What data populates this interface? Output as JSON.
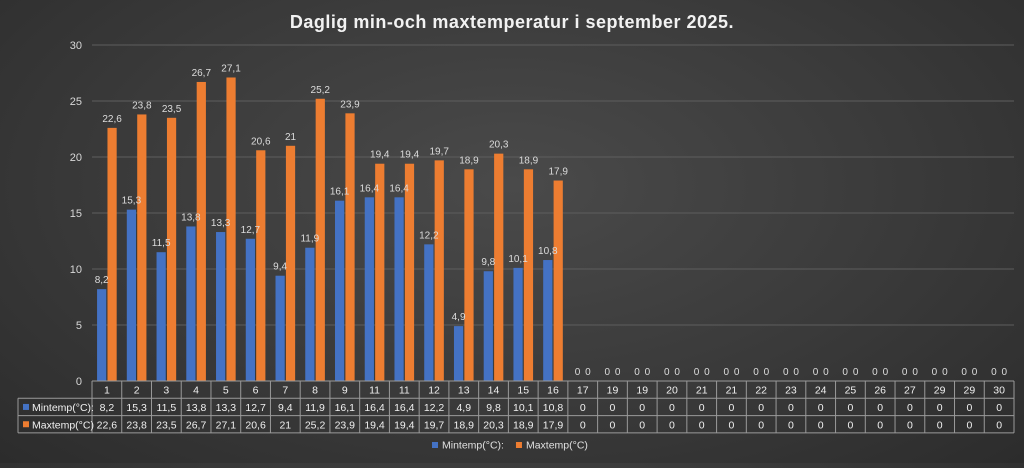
{
  "chart_data": {
    "type": "bar",
    "title": "Daglig min-och maxtemperatur i september 2025.",
    "categories": [
      "1",
      "2",
      "3",
      "4",
      "5",
      "6",
      "7",
      "8",
      "9",
      "11",
      "11",
      "12",
      "13",
      "14",
      "15",
      "16",
      "17",
      "19",
      "19",
      "20",
      "21",
      "21",
      "22",
      "23",
      "24",
      "25",
      "26",
      "27",
      "29",
      "29",
      "30"
    ],
    "series": [
      {
        "name": "Mintemp(°C):",
        "color": "#4472c4",
        "values": [
          8.2,
          15.3,
          11.5,
          13.8,
          13.3,
          12.7,
          9.4,
          11.9,
          16.1,
          16.4,
          16.4,
          12.2,
          4.9,
          9.8,
          10.1,
          10.8,
          0,
          0,
          0,
          0,
          0,
          0,
          0,
          0,
          0,
          0,
          0,
          0,
          0,
          0,
          0
        ],
        "labels": [
          "8,2",
          "15,3",
          "11,5",
          "13,8",
          "13,3",
          "12,7",
          "9,4",
          "11,9",
          "16,1",
          "16,4",
          "16,4",
          "12,2",
          "4,9",
          "9,8",
          "10,1",
          "10,8",
          "0",
          "0",
          "0",
          "0",
          "0",
          "0",
          "0",
          "0",
          "0",
          "0",
          "0",
          "0",
          "0",
          "0",
          "0"
        ]
      },
      {
        "name": "Maxtemp(°C)",
        "color": "#ed7d31",
        "values": [
          22.6,
          23.8,
          23.5,
          26.7,
          27.1,
          20.6,
          21,
          25.2,
          23.9,
          19.4,
          19.4,
          19.7,
          18.9,
          20.3,
          18.9,
          17.9,
          0,
          0,
          0,
          0,
          0,
          0,
          0,
          0,
          0,
          0,
          0,
          0,
          0,
          0,
          0
        ],
        "labels": [
          "22,6",
          "23,8",
          "23,5",
          "26,7",
          "27,1",
          "20,6",
          "21",
          "25,2",
          "23,9",
          "19,4",
          "19,4",
          "19,7",
          "18,9",
          "20,3",
          "18,9",
          "17,9",
          "0",
          "0",
          "0",
          "0",
          "0",
          "0",
          "0",
          "0",
          "0",
          "0",
          "0",
          "0",
          "0",
          "0",
          "0"
        ]
      }
    ],
    "ylim": [
      0,
      30
    ],
    "yticks": [
      0,
      5,
      10,
      15,
      20,
      25,
      30
    ],
    "grid": true,
    "legend_position": "bottom",
    "data_table": true
  }
}
